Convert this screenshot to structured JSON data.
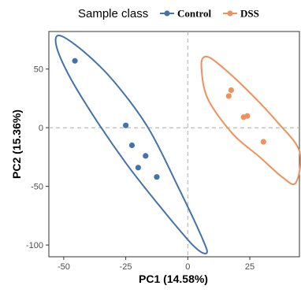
{
  "chart_data": {
    "type": "scatter",
    "xlabel": "PC1 (14.58%)",
    "ylabel": "PC2 (15.36%)",
    "xlim": [
      -56,
      45
    ],
    "ylim": [
      -110,
      82
    ],
    "x_ticks": [
      -50,
      -25,
      0,
      25
    ],
    "y_ticks": [
      50,
      0,
      -50,
      -100
    ],
    "grid": false,
    "reference_lines": {
      "x": 0,
      "y": 0,
      "style": "dashed",
      "color": "#b3b3b3"
    },
    "legend": {
      "title": "Sample class",
      "position": "top",
      "entries": [
        {
          "label": "Control",
          "color": "#4472aa"
        },
        {
          "label": "DSS",
          "color": "#ee915c"
        }
      ]
    },
    "series": [
      {
        "name": "Control",
        "color": "#4472aa",
        "points": [
          {
            "x": -45.5,
            "y": 57
          },
          {
            "x": -25,
            "y": 2
          },
          {
            "x": -22.5,
            "y": -15
          },
          {
            "x": -20,
            "y": -34
          },
          {
            "x": -17,
            "y": -24
          },
          {
            "x": -12.5,
            "y": -42
          }
        ],
        "ellipse": [
          {
            "x": -51.5,
            "y": 78.5
          },
          {
            "x": -42,
            "y": 65
          },
          {
            "x": -30,
            "y": 40
          },
          {
            "x": -16,
            "y": 0
          },
          {
            "x": -4,
            "y": -50
          },
          {
            "x": 6,
            "y": -95
          },
          {
            "x": 7.5,
            "y": -107
          },
          {
            "x": 2,
            "y": -100
          },
          {
            "x": -12,
            "y": -65
          },
          {
            "x": -25,
            "y": -30
          },
          {
            "x": -38,
            "y": 10
          },
          {
            "x": -48,
            "y": 45
          },
          {
            "x": -53,
            "y": 70
          }
        ]
      },
      {
        "name": "DSS",
        "color": "#ee915c",
        "points": [
          {
            "x": 16.5,
            "y": 27
          },
          {
            "x": 17.5,
            "y": 32
          },
          {
            "x": 22.5,
            "y": 9
          },
          {
            "x": 24,
            "y": 10
          },
          {
            "x": 30.5,
            "y": -12
          }
        ],
        "ellipse": [
          {
            "x": 7,
            "y": 60.5
          },
          {
            "x": 12,
            "y": 55
          },
          {
            "x": 24,
            "y": 32
          },
          {
            "x": 36,
            "y": 5
          },
          {
            "x": 45,
            "y": -20
          },
          {
            "x": 43.5,
            "y": -47
          },
          {
            "x": 38,
            "y": -42
          },
          {
            "x": 29,
            "y": -25
          },
          {
            "x": 18,
            "y": -5
          },
          {
            "x": 8,
            "y": 25
          },
          {
            "x": 5.5,
            "y": 52
          }
        ]
      }
    ]
  }
}
